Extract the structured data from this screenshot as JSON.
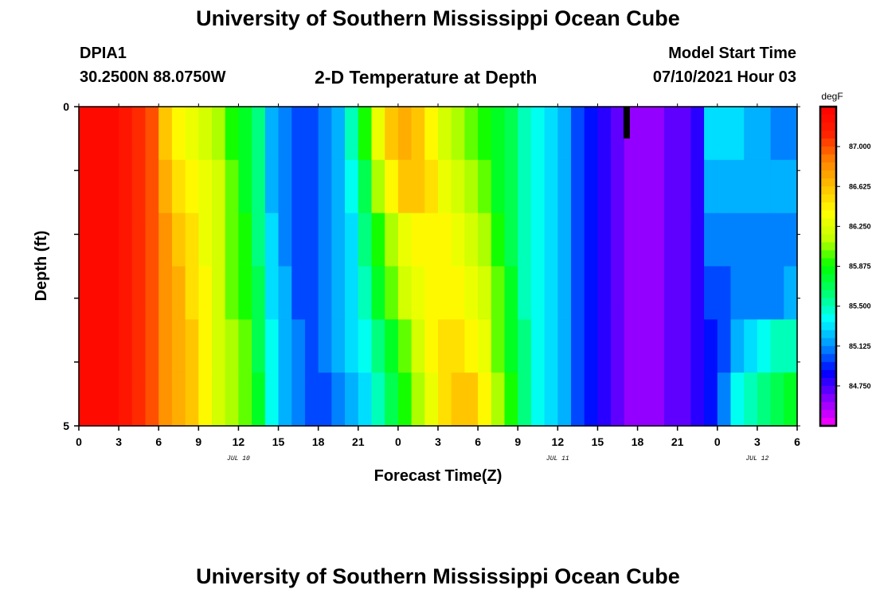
{
  "header": {
    "title": "University of Southern Mississippi Ocean Cube",
    "station_id": "DPIA1",
    "station_coords": "30.2500N  88.0750W",
    "chart_title": "2-D Temperature at Depth",
    "model_start_label": "Model Start Time",
    "model_start_value": "07/10/2021 Hour 03"
  },
  "footer": {
    "title": "University of Southern Mississippi Ocean Cube"
  },
  "chart_data": {
    "type": "heatmap",
    "title": "2-D Temperature at Depth",
    "xlabel": "Forecast Time(Z)",
    "ylabel": "Depth (ft)",
    "x_tick_labels": [
      "0",
      "3",
      "6",
      "9",
      "12",
      "15",
      "18",
      "21",
      "0",
      "3",
      "6",
      "9",
      "12",
      "15",
      "18",
      "21",
      "0",
      "3",
      "6"
    ],
    "y_tick_labels": [
      "0",
      "5"
    ],
    "y_range": [
      0,
      5
    ],
    "date_labels": [
      {
        "text": "JUL 10",
        "hour_index": 12
      },
      {
        "text": "JUL 11",
        "hour_index": 36
      },
      {
        "text": "JUL 12",
        "hour_index": 51
      }
    ],
    "colorbar": {
      "unit": "degF",
      "labels": [
        "87.000",
        "86.625",
        "86.250",
        "85.875",
        "85.500",
        "85.125",
        "84.750"
      ],
      "levels": [
        84.75,
        85.125,
        85.5,
        85.875,
        86.25,
        86.625,
        87.0
      ],
      "colors": [
        "#ff00ff",
        "#8800ff",
        "#0000ff",
        "#0090ff",
        "#00ffff",
        "#00ff70",
        "#00ff00",
        "#c0ff00",
        "#ffff00",
        "#ffc000",
        "#ff8000",
        "#ff2000",
        "#ff0000"
      ]
    },
    "model_start_marker_hour": 41,
    "depth_levels_ft": [
      0.25,
      1.0,
      2.0,
      3.0,
      4.0,
      4.75
    ],
    "hours": 54,
    "temperatures_degF": [
      [
        87.3,
        87.3,
        87.3,
        87.2,
        87.1,
        87.0,
        86.6,
        86.4,
        86.3,
        86.2,
        86.1,
        85.9,
        85.8,
        85.6,
        85.2,
        85.1,
        85.0,
        85.0,
        85.1,
        85.2,
        85.5,
        85.9,
        86.3,
        86.6,
        86.7,
        86.6,
        86.4,
        86.2,
        86.1,
        86.0,
        85.9,
        85.8,
        85.7,
        85.5,
        85.4,
        85.3,
        85.2,
        85.0,
        84.9,
        84.8,
        84.7,
        84.6,
        84.6,
        84.6,
        84.7,
        84.7,
        84.8,
        85.3,
        85.3,
        85.3,
        85.2,
        85.2,
        85.1,
        85.1
      ],
      [
        87.3,
        87.3,
        87.3,
        87.2,
        87.1,
        87.0,
        86.7,
        86.5,
        86.4,
        86.3,
        86.2,
        86.0,
        85.8,
        85.6,
        85.2,
        85.1,
        85.0,
        85.0,
        85.1,
        85.2,
        85.4,
        85.7,
        86.1,
        86.4,
        86.6,
        86.6,
        86.5,
        86.3,
        86.2,
        86.1,
        86.0,
        85.8,
        85.7,
        85.5,
        85.4,
        85.3,
        85.2,
        85.0,
        84.9,
        84.8,
        84.7,
        84.6,
        84.6,
        84.6,
        84.7,
        84.7,
        84.8,
        85.2,
        85.2,
        85.2,
        85.2,
        85.2,
        85.2,
        85.2
      ],
      [
        87.3,
        87.3,
        87.3,
        87.2,
        87.1,
        87.0,
        86.8,
        86.6,
        86.5,
        86.3,
        86.2,
        86.0,
        85.9,
        85.6,
        85.3,
        85.1,
        85.0,
        85.0,
        85.1,
        85.2,
        85.3,
        85.6,
        85.9,
        86.1,
        86.3,
        86.4,
        86.4,
        86.4,
        86.3,
        86.2,
        86.1,
        85.9,
        85.7,
        85.5,
        85.4,
        85.3,
        85.2,
        85.0,
        84.9,
        84.8,
        84.7,
        84.6,
        84.6,
        84.6,
        84.7,
        84.7,
        84.8,
        85.1,
        85.1,
        85.1,
        85.1,
        85.1,
        85.1,
        85.1
      ],
      [
        87.3,
        87.3,
        87.3,
        87.2,
        87.1,
        87.0,
        86.8,
        86.7,
        86.5,
        86.4,
        86.2,
        86.0,
        85.9,
        85.7,
        85.3,
        85.2,
        85.0,
        85.0,
        85.1,
        85.2,
        85.3,
        85.5,
        85.8,
        86.0,
        86.2,
        86.3,
        86.4,
        86.4,
        86.4,
        86.3,
        86.2,
        86.0,
        85.8,
        85.5,
        85.4,
        85.3,
        85.2,
        85.0,
        84.9,
        84.8,
        84.7,
        84.6,
        84.6,
        84.6,
        84.7,
        84.7,
        84.8,
        85.0,
        85.0,
        85.1,
        85.1,
        85.1,
        85.1,
        85.2
      ],
      [
        87.3,
        87.3,
        87.3,
        87.2,
        87.1,
        87.0,
        86.8,
        86.7,
        86.6,
        86.4,
        86.2,
        86.1,
        86.0,
        85.7,
        85.4,
        85.2,
        85.1,
        85.0,
        85.1,
        85.2,
        85.3,
        85.4,
        85.6,
        85.8,
        86.0,
        86.2,
        86.4,
        86.5,
        86.5,
        86.4,
        86.3,
        86.0,
        85.8,
        85.6,
        85.4,
        85.3,
        85.2,
        85.0,
        84.9,
        84.8,
        84.7,
        84.6,
        84.6,
        84.6,
        84.7,
        84.7,
        84.8,
        84.9,
        85.0,
        85.2,
        85.3,
        85.4,
        85.5,
        85.5
      ],
      [
        87.3,
        87.3,
        87.3,
        87.2,
        87.1,
        87.0,
        86.8,
        86.7,
        86.6,
        86.4,
        86.2,
        86.1,
        86.0,
        85.8,
        85.4,
        85.2,
        85.1,
        85.0,
        85.0,
        85.1,
        85.2,
        85.3,
        85.5,
        85.7,
        85.9,
        86.1,
        86.3,
        86.5,
        86.6,
        86.6,
        86.4,
        86.1,
        85.9,
        85.6,
        85.4,
        85.3,
        85.2,
        85.0,
        84.9,
        84.8,
        84.7,
        84.6,
        84.6,
        84.6,
        84.7,
        84.7,
        84.8,
        84.9,
        85.1,
        85.4,
        85.5,
        85.6,
        85.7,
        85.8
      ]
    ]
  }
}
